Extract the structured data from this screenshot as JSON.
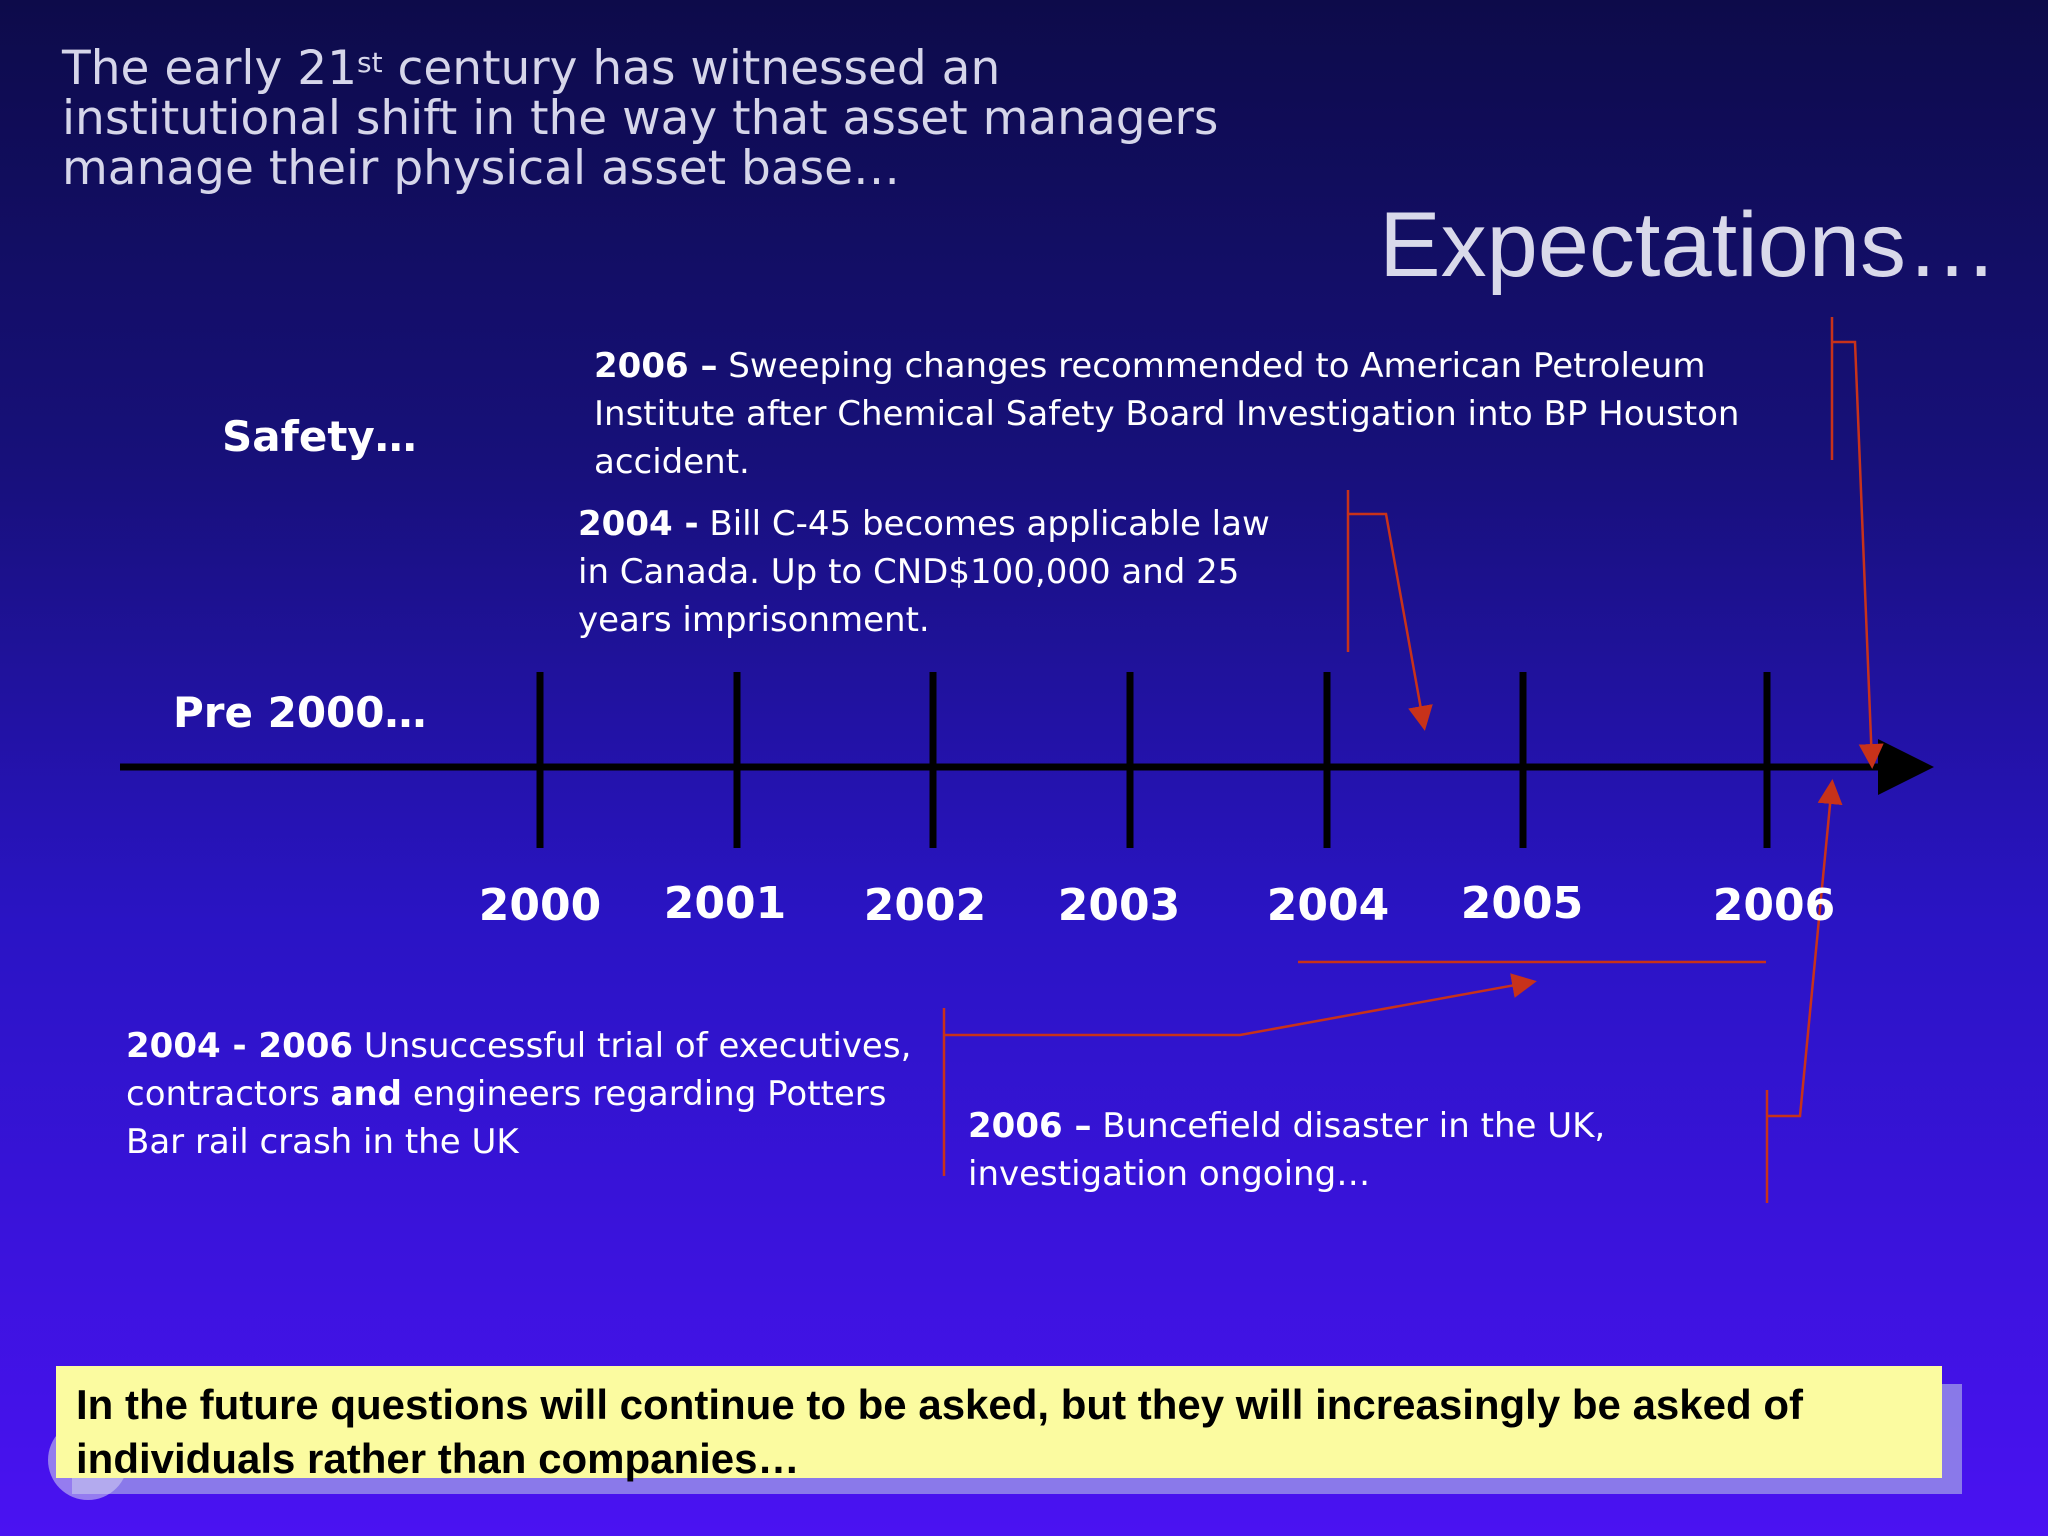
{
  "slide": {
    "intro": {
      "before_sup": "The early 21",
      "sup": "st",
      "after_sup": " century has witnessed an institutional shift in the way that asset managers manage their physical asset base…"
    },
    "heading": "Expectations…",
    "safety_label": "Safety…",
    "pre2000_label": "Pre 2000…",
    "years": [
      "2000",
      "2001",
      "2002",
      "2003",
      "2004",
      "2005",
      "2006"
    ],
    "events": {
      "api_2006": {
        "bold": "2006 –",
        "text": " Sweeping changes recommended to American Petroleum Institute after Chemical Safety Board Investigation into BP Houston accident."
      },
      "bill_2004": {
        "bold": "2004 -",
        "text": " Bill C-45 becomes applicable law in Canada. Up to CND$100,000 and 25 years imprisonment."
      },
      "potters_bar": {
        "bold1": "2004 - 2006",
        "text1": " Unsuccessful trial of executives, contractors ",
        "bold2": "and",
        "text2": " engineers regarding Potters Bar rail crash in the UK"
      },
      "buncefield": {
        "bold": "2006 –",
        "text": " Buncefield disaster in the UK, investigation ongoing…"
      }
    },
    "callout": "In the future questions will continue to be asked, but they will increasingly be asked of individuals rather than companies…",
    "colors": {
      "arrow": "#c8321a",
      "axis": "#000000",
      "callout_bg": "#fbfba0"
    }
  }
}
